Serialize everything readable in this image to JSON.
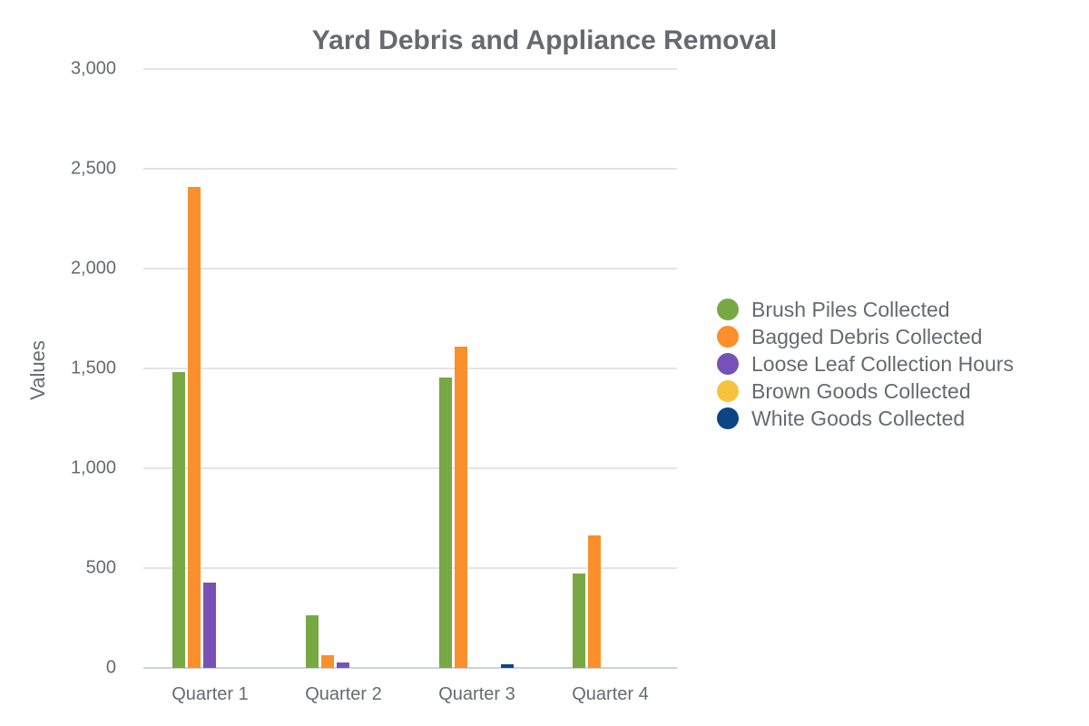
{
  "chart_data": {
    "type": "bar",
    "title": "Yard Debris and Appliance Removal",
    "xlabel": "",
    "ylabel": "Values",
    "ylim": [
      0,
      3000
    ],
    "yticks": [
      0,
      500,
      1000,
      1500,
      2000,
      2500,
      3000
    ],
    "ytick_labels": [
      "0",
      "500",
      "1,000",
      "1,500",
      "2,000",
      "2,500",
      "3,000"
    ],
    "grid": true,
    "legend_position": "right",
    "categories": [
      "Quarter 1",
      "Quarter 2",
      "Quarter 3",
      "Quarter 4"
    ],
    "series": [
      {
        "name": "Brush Piles Collected",
        "color": "#78a843",
        "values": [
          1482,
          264,
          1455,
          473
        ]
      },
      {
        "name": "Bagged Debris Collected",
        "color": "#fa8f2c",
        "values": [
          2410,
          64,
          1609,
          664
        ]
      },
      {
        "name": "Loose Leaf Collection Hours",
        "color": "#7752b6",
        "values": [
          427,
          27,
          0,
          0
        ]
      },
      {
        "name": "Brown Goods Collected",
        "color": "#f9c23c",
        "values": [
          0,
          0,
          0,
          0
        ]
      },
      {
        "name": "White Goods Collected",
        "color": "#0d4584",
        "values": [
          0,
          0,
          18,
          0
        ]
      }
    ]
  }
}
